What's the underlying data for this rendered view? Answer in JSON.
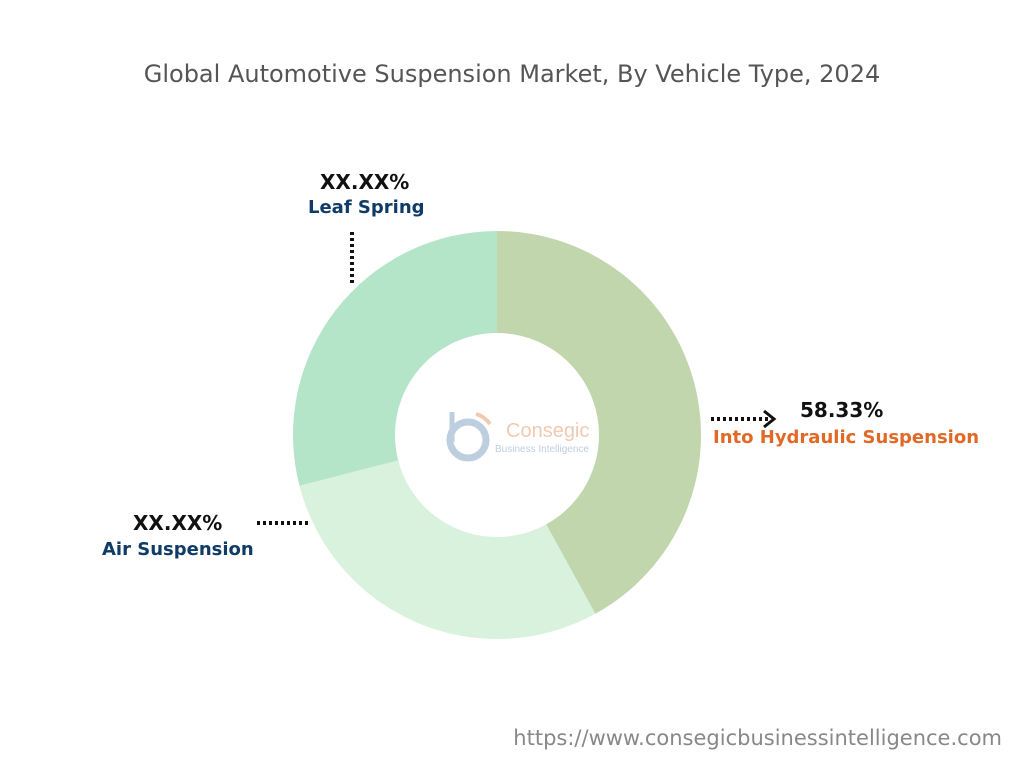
{
  "chart_data": {
    "type": "pie",
    "variant": "donut",
    "title": "Global Automotive Suspension Market, By Vehicle Type, 2024",
    "slices": [
      {
        "label": "Into Hydraulic Suspension",
        "value_label": "58.33%",
        "visual_share": 42,
        "color": "#c2d6ad",
        "label_color": "#e06a25"
      },
      {
        "label": "Air Suspension",
        "value_label": "XX.XX%",
        "visual_share": 29,
        "color": "#d9f2dd",
        "label_color": "#0f3b66"
      },
      {
        "label": "Leaf Spring",
        "value_label": "XX.XX%",
        "visual_share": 29,
        "color": "#b5e5c9",
        "label_color": "#0f3b66"
      }
    ],
    "legend": "none"
  },
  "logo": {
    "text": "Consegic",
    "subtext": "Business Intelligence"
  },
  "footer": {
    "url": "https://www.consegicbusinessintelligence.com"
  }
}
